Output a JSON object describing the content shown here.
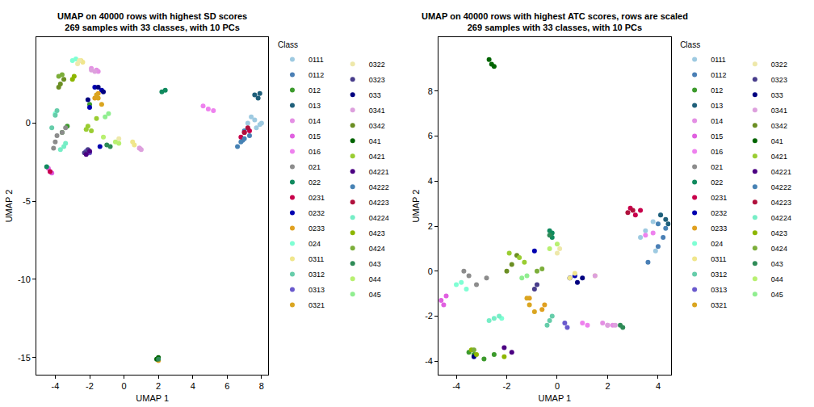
{
  "chart_data": [
    {
      "type": "scatter",
      "title": "UMAP on 40000 rows with highest SD scores",
      "subtitle": "269 samples with 33 classes, with 10 PCs",
      "x_label": "UMAP 1",
      "y_label": "UMAP 2",
      "legend_title": "Class",
      "legend": "right",
      "grid": false,
      "marker": "circle",
      "xlim": [
        -5.1,
        8.4
      ],
      "xticks": [
        -4,
        -2,
        0,
        2,
        4,
        6,
        8
      ],
      "ylim": [
        -16.1,
        5.5
      ],
      "yticks": [
        -15,
        -10,
        -5,
        0
      ],
      "series": [
        {
          "name": "0111",
          "color": "#9ECAE1",
          "x": [
            7.6,
            7.9,
            7.4,
            8.0,
            7.7,
            7.2
          ],
          "y": [
            0.2,
            -0.1,
            0.4,
            0.0,
            -0.3,
            0.0
          ]
        },
        {
          "name": "0112",
          "color": "#4A7FB5",
          "x": [
            7.0,
            7.3,
            6.9
          ],
          "y": [
            -0.5,
            -0.8,
            -1.1
          ]
        },
        {
          "name": "012",
          "color": "#3C9A2C",
          "x": [
            -3.6,
            -3.3,
            -2.0
          ],
          "y": [
            -0.6,
            -0.2,
            1.2
          ]
        },
        {
          "name": "013",
          "color": "#1F5F7A",
          "x": [
            7.6,
            7.9,
            7.8
          ],
          "y": [
            1.8,
            1.9,
            1.6
          ]
        },
        {
          "name": "014",
          "color": "#E48FE4",
          "x": [
            -1.9,
            -1.6,
            -1.5
          ],
          "y": [
            3.5,
            3.4,
            3.3
          ]
        },
        {
          "name": "015",
          "color": "#E060E0",
          "x": [
            -4.3,
            -4.2,
            -4.4
          ],
          "y": [
            -3.1,
            -3.2,
            -2.9
          ]
        },
        {
          "name": "016",
          "color": "#EE82EE",
          "x": [
            4.6,
            4.9,
            5.2,
            0.9
          ],
          "y": [
            1.1,
            0.9,
            0.8,
            -1.6
          ]
        },
        {
          "name": "021",
          "color": "#8C8C8C",
          "x": [
            -3.9,
            -3.6,
            -4.0,
            -3.4,
            -4.1
          ],
          "y": [
            -0.8,
            -0.6,
            -1.2,
            -0.3,
            -1.6
          ]
        },
        {
          "name": "022",
          "color": "#108A5E",
          "x": [
            2.2,
            2.4,
            -4.5
          ],
          "y": [
            2.0,
            2.1,
            -2.8
          ]
        },
        {
          "name": "0231",
          "color": "#C8004B",
          "x": [
            7.0,
            6.8,
            7.3,
            -4.3
          ],
          "y": [
            -0.6,
            -0.9,
            -0.5,
            -3.1
          ]
        },
        {
          "name": "0232",
          "color": "#0000B0",
          "x": [
            -2.0,
            -1.7,
            -1.3,
            -1.4
          ],
          "y": [
            1.0,
            2.3,
            2.1,
            -1.5
          ]
        },
        {
          "name": "0233",
          "color": "#E0A020",
          "x": [
            -1.7,
            -1.5,
            2.0
          ],
          "y": [
            1.6,
            1.9,
            -15.2
          ]
        },
        {
          "name": "024",
          "color": "#7FFFD4",
          "x": [
            -3.0,
            -2.8,
            -4.0
          ],
          "y": [
            4.0,
            4.1,
            0.6
          ]
        },
        {
          "name": "0311",
          "color": "#F0E68C",
          "x": [
            -2.5,
            -2.4,
            0.5,
            0.6
          ],
          "y": [
            4.0,
            3.9,
            -1.2,
            -1.4
          ]
        },
        {
          "name": "0312",
          "color": "#66CDAA",
          "x": [
            -4.0,
            -3.9,
            -4.2
          ],
          "y": [
            0.5,
            0.8,
            -0.3
          ]
        },
        {
          "name": "0313",
          "color": "#6A5ACD",
          "x": [
            -2.2,
            -2.0
          ],
          "y": [
            -1.8,
            -1.9
          ]
        },
        {
          "name": "0321",
          "color": "#DAA520",
          "x": [
            -1.5,
            -1.3,
            -1.6
          ],
          "y": [
            1.6,
            1.2,
            1.8
          ]
        },
        {
          "name": "0322",
          "color": "#EEE8AA",
          "x": [
            -2.7,
            -2.6,
            -0.3
          ],
          "y": [
            3.8,
            4.0,
            -1.0
          ]
        },
        {
          "name": "0323",
          "color": "#483D8B",
          "x": [
            -2.3,
            -2.1
          ],
          "y": [
            -1.9,
            -1.7
          ]
        },
        {
          "name": "033",
          "color": "#000080",
          "x": [
            -1.5,
            -1.2,
            -2.1
          ],
          "y": [
            2.3,
            2.0,
            1.5
          ]
        },
        {
          "name": "0341",
          "color": "#DDA0DD",
          "x": [
            -1.9,
            -1.7,
            0.9,
            1.0
          ],
          "y": [
            3.4,
            3.3,
            -1.6,
            -1.7
          ]
        },
        {
          "name": "0342",
          "color": "#6B8E23",
          "x": [
            -3.7,
            -3.5,
            -3.8
          ],
          "y": [
            2.5,
            2.8,
            2.3
          ]
        },
        {
          "name": "041",
          "color": "#006400",
          "x": [
            2.0,
            1.9
          ],
          "y": [
            -15.0,
            -15.1
          ]
        },
        {
          "name": "0421",
          "color": "#9ACD32",
          "x": [
            -2.2,
            -2.1,
            -1.9,
            -1.6
          ],
          "y": [
            -0.4,
            -0.2,
            -0.5,
            0.3
          ]
        },
        {
          "name": "04221",
          "color": "#4B0082",
          "x": [
            -2.0,
            -2.2
          ],
          "y": [
            -1.8,
            -2.0
          ]
        },
        {
          "name": "04222",
          "color": "#4682B4",
          "x": [
            6.8,
            6.6,
            7.0
          ],
          "y": [
            -1.2,
            -1.5,
            -1.0
          ]
        },
        {
          "name": "04223",
          "color": "#B0103C",
          "x": [
            7.2,
            7.0
          ],
          "y": [
            -0.3,
            -0.6
          ]
        },
        {
          "name": "04224",
          "color": "#76EEC6",
          "x": [
            -3.5,
            -3.4,
            -3.7
          ],
          "y": [
            -1.5,
            -1.3,
            -1.7
          ]
        },
        {
          "name": "0423",
          "color": "#8DB600",
          "x": [
            -3.0,
            -2.9
          ],
          "y": [
            2.8,
            3.0
          ]
        },
        {
          "name": "0424",
          "color": "#7CAE3A",
          "x": [
            -3.8,
            -3.6
          ],
          "y": [
            3.0,
            3.1
          ]
        },
        {
          "name": "043",
          "color": "#2E8B57",
          "x": [
            2.0,
            -1.0,
            -0.8
          ],
          "y": [
            -15.1,
            -1.4,
            -1.5
          ]
        },
        {
          "name": "044",
          "color": "#B8F070",
          "x": [
            -0.5,
            -0.3,
            -1.2
          ],
          "y": [
            -1.2,
            -1.3,
            -0.9
          ]
        },
        {
          "name": "045",
          "color": "#90EE90",
          "x": [
            -1.1,
            -0.9
          ],
          "y": [
            0.4,
            0.6
          ]
        }
      ]
    },
    {
      "type": "scatter",
      "title": "UMAP on 40000 rows with highest ATC scores, rows are scaled",
      "subtitle": "269 samples with 33 classes, with 10 PCs",
      "x_label": "UMAP 1",
      "y_label": "UMAP 2",
      "legend_title": "Class",
      "legend": "right",
      "grid": false,
      "marker": "circle",
      "xlim": [
        -4.7,
        4.5
      ],
      "xticks": [
        -4,
        -2,
        0,
        2,
        4
      ],
      "ylim": [
        -4.6,
        10.4
      ],
      "yticks": [
        -4,
        -2,
        0,
        2,
        4,
        6,
        8
      ],
      "series": [
        {
          "name": "0111",
          "color": "#9ECAE1",
          "x": [
            3.5,
            3.8,
            3.3,
            4.1,
            3.9
          ],
          "y": [
            1.8,
            2.2,
            1.5,
            2.5,
            0.9
          ]
        },
        {
          "name": "0112",
          "color": "#4A7FB5",
          "x": [
            4.2,
            4.0,
            3.6
          ],
          "y": [
            1.5,
            1.1,
            0.4
          ]
        },
        {
          "name": "012",
          "color": "#3C9A2C",
          "x": [
            -3.5,
            -3.3,
            -2.9,
            -2.5
          ],
          "y": [
            -3.6,
            -3.7,
            -3.9,
            -3.7
          ]
        },
        {
          "name": "013",
          "color": "#1F5F7A",
          "x": [
            4.3,
            4.4,
            4.1
          ],
          "y": [
            2.3,
            2.1,
            2.5
          ]
        },
        {
          "name": "014",
          "color": "#E48FE4",
          "x": [
            2.2,
            2.0,
            1.8
          ],
          "y": [
            -2.4,
            -2.4,
            -2.3
          ]
        },
        {
          "name": "015",
          "color": "#E060E0",
          "x": [
            -4.6,
            -4.5,
            -4.4
          ],
          "y": [
            -1.3,
            -1.5,
            -1.1
          ]
        },
        {
          "name": "016",
          "color": "#EE82EE",
          "x": [
            3.8,
            3.5,
            1.2,
            1.0
          ],
          "y": [
            1.7,
            1.6,
            -2.4,
            -2.3
          ]
        },
        {
          "name": "021",
          "color": "#8C8C8C",
          "x": [
            -3.5,
            -3.2,
            -3.7,
            -2.8
          ],
          "y": [
            -0.2,
            -0.6,
            0.0,
            -0.3
          ]
        },
        {
          "name": "022",
          "color": "#108A5E",
          "x": [
            -0.2,
            -0.3,
            -0.2
          ],
          "y": [
            1.7,
            1.8,
            1.5
          ]
        },
        {
          "name": "0231",
          "color": "#C8004B",
          "x": [
            3.3,
            3.1,
            2.9
          ],
          "y": [
            2.7,
            2.5,
            2.8
          ]
        },
        {
          "name": "0232",
          "color": "#0000B0",
          "x": [
            0.5,
            0.7,
            -0.9
          ],
          "y": [
            -0.3,
            -0.2,
            0.9
          ]
        },
        {
          "name": "0233",
          "color": "#E0A020",
          "x": [
            -0.5,
            -0.6,
            -1.1
          ],
          "y": [
            -1.5,
            -1.7,
            -1.2
          ]
        },
        {
          "name": "024",
          "color": "#7FFFD4",
          "x": [
            -3.8,
            -3.6,
            -4.0,
            -2.2
          ],
          "y": [
            -0.5,
            -0.8,
            -0.6,
            -2.1
          ]
        },
        {
          "name": "0311",
          "color": "#F0E68C",
          "x": [
            0.5,
            0.7,
            1.5
          ],
          "y": [
            -0.3,
            -0.1,
            -0.2
          ]
        },
        {
          "name": "0312",
          "color": "#66CDAA",
          "x": [
            -0.3,
            -0.2,
            -0.4
          ],
          "y": [
            -2.2,
            -2.0,
            -2.4
          ]
        },
        {
          "name": "0313",
          "color": "#6A5ACD",
          "x": [
            0.4,
            0.3
          ],
          "y": [
            -2.5,
            -2.3
          ]
        },
        {
          "name": "0321",
          "color": "#DAA520",
          "x": [
            -1.1,
            -0.9,
            -1.2
          ],
          "y": [
            -1.5,
            -1.8,
            -1.2
          ]
        },
        {
          "name": "0322",
          "color": "#EEE8AA",
          "x": [
            0.0,
            0.1
          ],
          "y": [
            0.8,
            1.0
          ]
        },
        {
          "name": "0323",
          "color": "#483D8B",
          "x": [
            -0.9,
            -0.8
          ],
          "y": [
            -0.8,
            -0.6
          ]
        },
        {
          "name": "033",
          "color": "#000080",
          "x": [
            1.0,
            0.8,
            -3.3
          ],
          "y": [
            -0.3,
            -0.5,
            -3.8
          ]
        },
        {
          "name": "0341",
          "color": "#DDA0DD",
          "x": [
            2.0,
            2.3,
            1.5
          ],
          "y": [
            -2.4,
            -2.4,
            -0.2
          ]
        },
        {
          "name": "0342",
          "color": "#6B8E23",
          "x": [
            -1.8,
            -1.6,
            -2.0
          ],
          "y": [
            0.3,
            0.7,
            0.0
          ]
        },
        {
          "name": "041",
          "color": "#006400",
          "x": [
            -2.6,
            -2.7,
            -2.5
          ],
          "y": [
            9.2,
            9.4,
            9.1
          ]
        },
        {
          "name": "0421",
          "color": "#9ACD32",
          "x": [
            -1.5,
            -1.3,
            -1.9
          ],
          "y": [
            0.6,
            0.4,
            0.8
          ]
        },
        {
          "name": "04221",
          "color": "#4B0082",
          "x": [
            -1.8,
            -2.1
          ],
          "y": [
            -3.6,
            -3.4
          ]
        },
        {
          "name": "04222",
          "color": "#4682B4",
          "x": [
            4.0,
            4.3
          ],
          "y": [
            2.1,
            1.9
          ]
        },
        {
          "name": "04223",
          "color": "#B0103C",
          "x": [
            3.0,
            2.8
          ],
          "y": [
            2.7,
            2.6
          ]
        },
        {
          "name": "04224",
          "color": "#76EEC6",
          "x": [
            -2.5,
            -2.3,
            -2.7
          ],
          "y": [
            -2.1,
            -2.0,
            -2.2
          ]
        },
        {
          "name": "0423",
          "color": "#8DB600",
          "x": [
            -3.2,
            -3.4,
            -2.1
          ],
          "y": [
            -3.7,
            -3.5,
            -3.8
          ]
        },
        {
          "name": "0424",
          "color": "#7CAE3A",
          "x": [
            -0.8,
            -0.6,
            -3.3
          ],
          "y": [
            0.0,
            0.1,
            -3.5
          ]
        },
        {
          "name": "043",
          "color": "#2E8B57",
          "x": [
            2.5,
            2.6,
            -0.3
          ],
          "y": [
            -2.4,
            -2.5,
            1.6
          ]
        },
        {
          "name": "044",
          "color": "#B8F070",
          "x": [
            -0.3,
            0.0
          ],
          "y": [
            1.0,
            1.2
          ]
        },
        {
          "name": "045",
          "color": "#90EE90",
          "x": [
            -1.2,
            -1.4
          ],
          "y": [
            -0.2,
            -0.3
          ]
        }
      ]
    }
  ]
}
